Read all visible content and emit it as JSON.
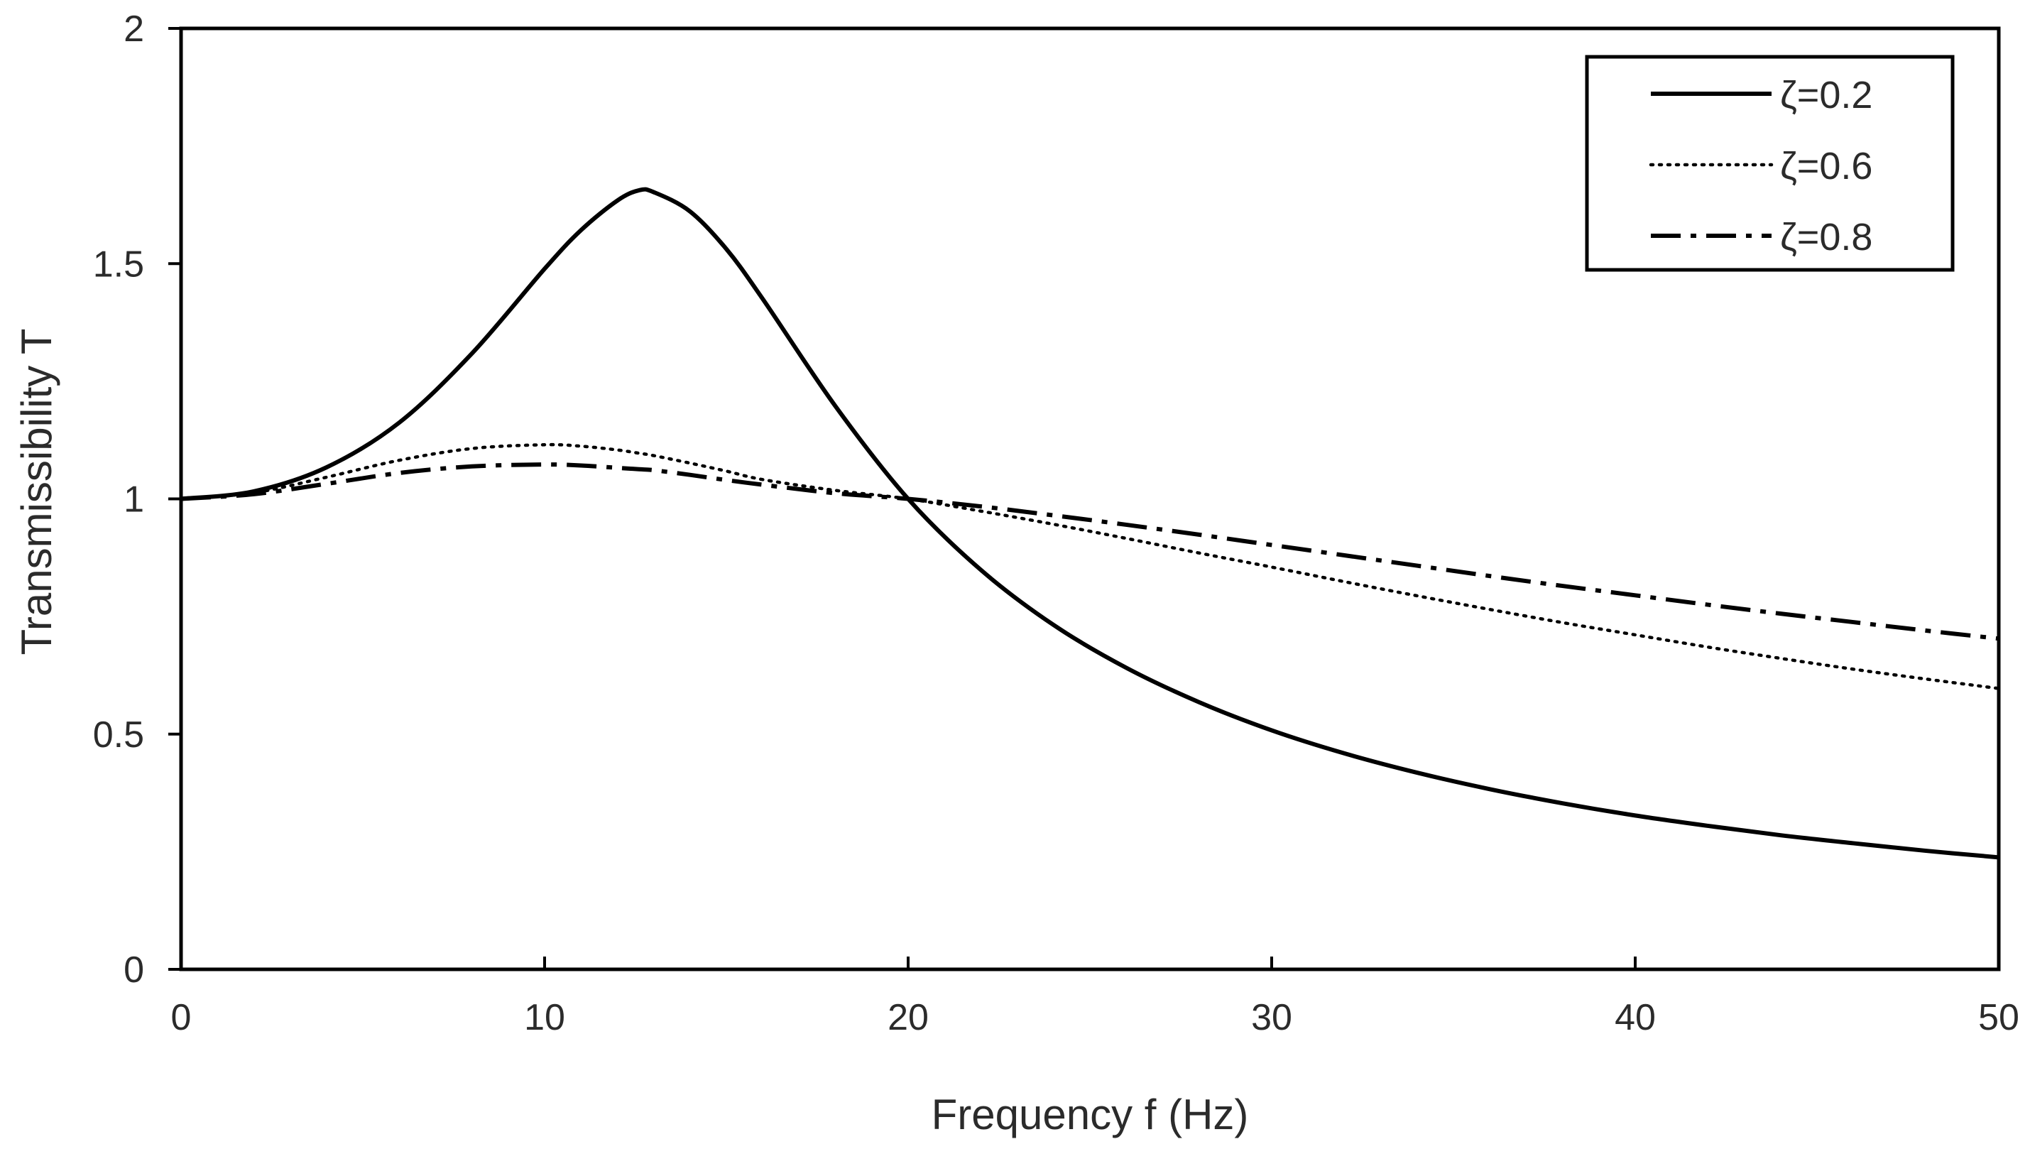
{
  "chart_data": {
    "type": "line",
    "title": "",
    "xlabel": "Frequency f (Hz)",
    "ylabel": "Transmissibility T",
    "xlim": [
      0,
      50
    ],
    "ylim": [
      0,
      2
    ],
    "xticks": [
      0,
      10,
      20,
      30,
      40,
      50
    ],
    "yticks": [
      0,
      0.5,
      1,
      1.5,
      2
    ],
    "xtick_labels": [
      "0",
      "10",
      "20",
      "30",
      "40",
      "50"
    ],
    "ytick_labels": [
      "0",
      "0.5",
      "1",
      "1.5",
      "2"
    ],
    "grid": false,
    "legend_position": "top-right",
    "x": [
      0,
      2,
      4,
      6,
      8,
      10,
      11,
      12,
      12.6,
      13,
      14,
      15,
      16,
      18,
      20,
      22,
      24,
      26,
      28,
      30,
      32,
      34,
      36,
      38,
      40,
      42,
      44,
      46,
      48,
      50
    ],
    "series": [
      {
        "name": "ζ=0.2",
        "style": "solid",
        "color": "#000000",
        "values": [
          1.0,
          1.016,
          1.067,
          1.162,
          1.309,
          1.489,
          1.571,
          1.634,
          1.656,
          1.652,
          1.611,
          1.531,
          1.425,
          1.197,
          1.0,
          0.849,
          0.732,
          0.641,
          0.568,
          0.508,
          0.459,
          0.418,
          0.383,
          0.353,
          0.327,
          0.305,
          0.285,
          0.268,
          0.252,
          0.238
        ]
      },
      {
        "name": "ζ=0.6",
        "style": "dotted",
        "color": "#000000",
        "values": [
          1.0,
          1.013,
          1.046,
          1.082,
          1.107,
          1.115,
          1.112,
          1.104,
          1.097,
          1.092,
          1.076,
          1.059,
          1.041,
          1.018,
          1.0,
          0.974,
          0.946,
          0.916,
          0.885,
          0.855,
          0.824,
          0.794,
          0.765,
          0.737,
          0.711,
          0.685,
          0.661,
          0.638,
          0.617,
          0.597
        ]
      },
      {
        "name": "ζ=0.8",
        "style": "dash-dot",
        "color": "#000000",
        "values": [
          1.0,
          1.01,
          1.032,
          1.055,
          1.069,
          1.073,
          1.071,
          1.066,
          1.063,
          1.061,
          1.051,
          1.04,
          1.03,
          1.012,
          1.0,
          0.984,
          0.965,
          0.945,
          0.924,
          0.902,
          0.88,
          0.858,
          0.836,
          0.815,
          0.795,
          0.775,
          0.756,
          0.738,
          0.72,
          0.703
        ]
      }
    ]
  }
}
